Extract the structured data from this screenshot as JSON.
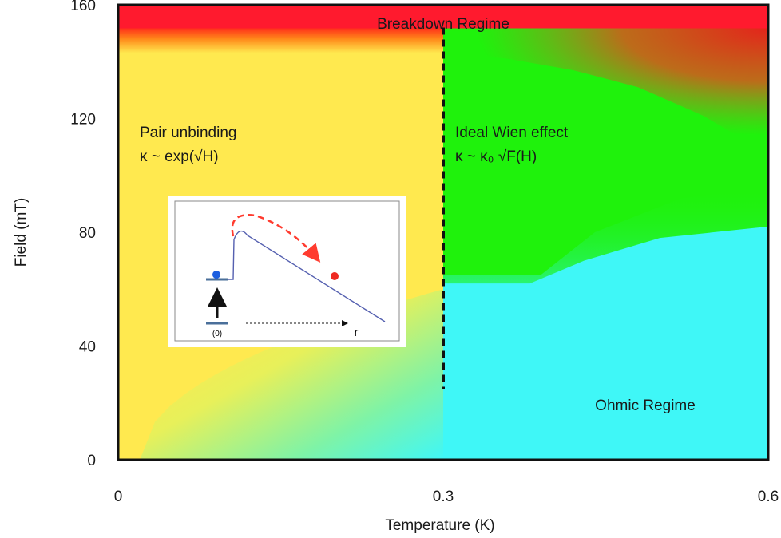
{
  "chart_data": {
    "type": "heatmap",
    "title": "",
    "xlabel": "Temperature (K)",
    "ylabel": "Field (mT)",
    "xlim": [
      0,
      0.6
    ],
    "ylim": [
      0,
      160
    ],
    "x_ticks": [
      {
        "value": 0,
        "label": "0"
      },
      {
        "value": 0.3,
        "label": "0.3"
      },
      {
        "value": 0.6,
        "label": "0.6"
      }
    ],
    "y_ticks": [
      {
        "value": 0,
        "label": "0"
      },
      {
        "value": 40,
        "label": "40"
      },
      {
        "value": 80,
        "label": "80"
      },
      {
        "value": 120,
        "label": "120"
      },
      {
        "value": 160,
        "label": "160"
      }
    ],
    "grid": false,
    "regions": [
      {
        "name": "breakdown",
        "label": "Breakdown Regime",
        "color": "#ff1a2e",
        "field_min": 152,
        "field_max": 160
      },
      {
        "name": "pair-unbinding",
        "label": "Pair unbinding",
        "formula": "κ ~ exp(√H)",
        "color": "#ffe94f",
        "temperature_range": [
          0,
          0.3
        ]
      },
      {
        "name": "ideal-wien",
        "label": "Ideal Wien effect",
        "formula": "κ ~ κ₀ √F(H)",
        "color": "#1ff20c",
        "temperature_range": [
          0.3,
          0.6
        ]
      },
      {
        "name": "ohmic",
        "label": "Ohmic Regime",
        "color": "#3ff7f7"
      }
    ],
    "vertical_line": {
      "temperature": 0.3,
      "field_from": 25,
      "field_to": 152,
      "style": "dashed"
    },
    "inset": {
      "origin_label": "(0)",
      "axis_label": "r"
    }
  },
  "colors": {
    "breakdown": "#ff1a2e",
    "orange": "#ff7a1a",
    "yellow": "#ffe94f",
    "green": "#1ff20c",
    "cyan": "#3ff7f7",
    "dark_red": "#c94420",
    "inset_line": "#5560b0",
    "inset_dash": "#ff3b2f",
    "dot_blue": "#1d5fe0",
    "dot_red": "#ee2a22"
  }
}
